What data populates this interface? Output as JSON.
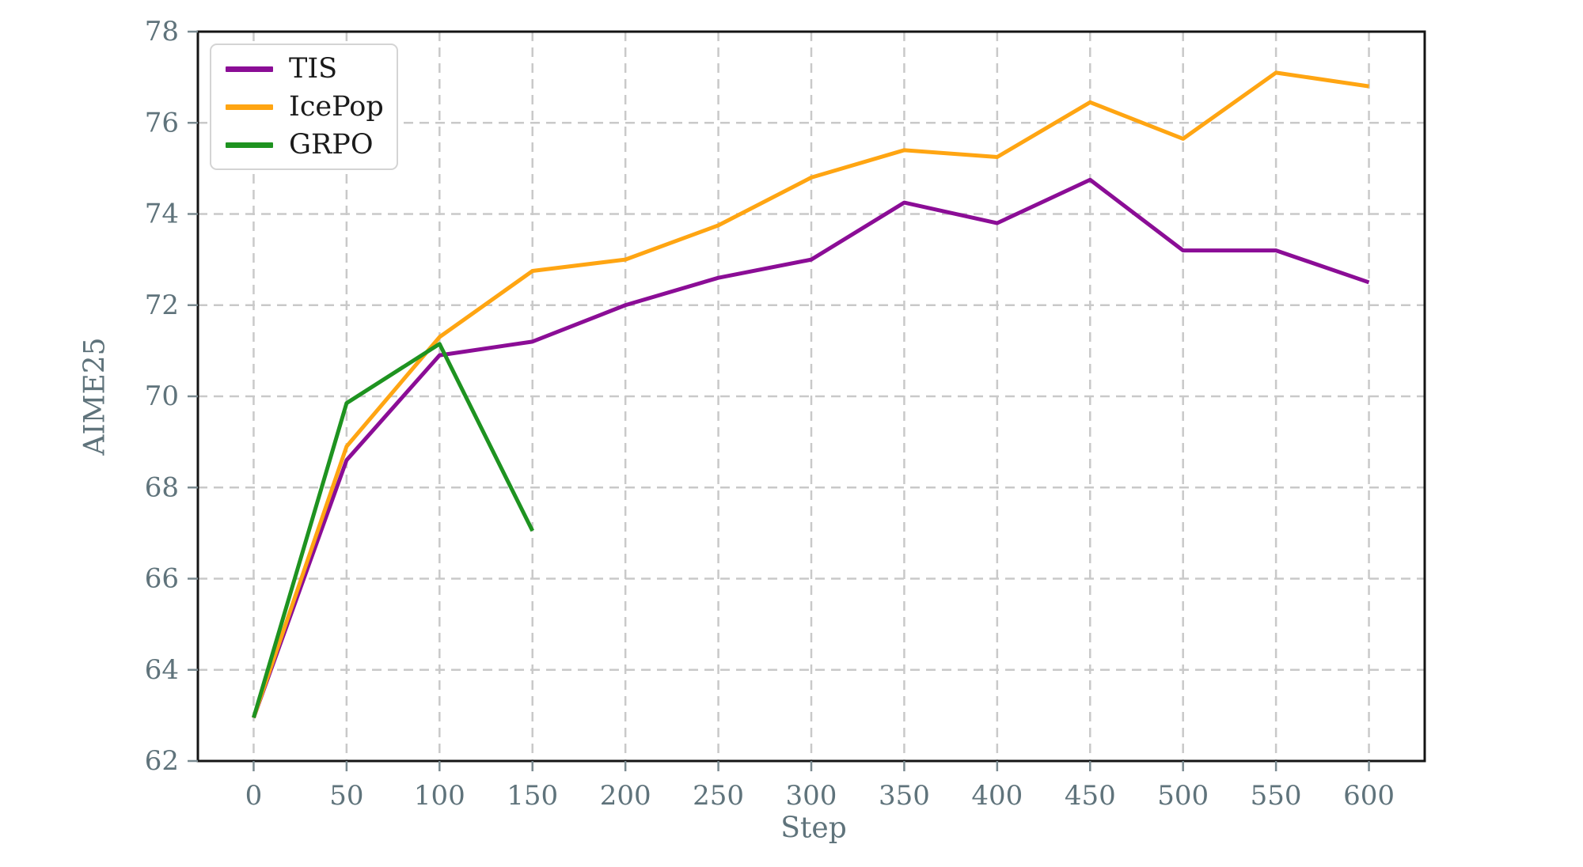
{
  "figure": {
    "background": "#ffffff",
    "spine_color": "#141414",
    "grid_color": "#c9c9c9",
    "tick_color": "#7a8a90",
    "tick_label_color": "#5f737b"
  },
  "chart_data": {
    "type": "line",
    "title": "",
    "xlabel": "Step",
    "ylabel": "AIME25",
    "xlim": [
      -30,
      630
    ],
    "ylim": [
      62,
      78
    ],
    "xticks": [
      0,
      50,
      100,
      150,
      200,
      250,
      300,
      350,
      400,
      450,
      500,
      550,
      600
    ],
    "yticks": [
      62,
      64,
      66,
      68,
      70,
      72,
      74,
      76,
      78
    ],
    "grid": true,
    "grid_style": "dashed",
    "legend_position": "upper left",
    "series": [
      {
        "name": "TIS",
        "color": "#8b0d96",
        "x": [
          0,
          50,
          100,
          150,
          200,
          250,
          300,
          350,
          400,
          450,
          500,
          550,
          600
        ],
        "values": [
          62.95,
          68.6,
          70.9,
          71.2,
          72.0,
          72.6,
          73.0,
          74.25,
          73.8,
          74.75,
          73.2,
          73.2,
          72.5
        ]
      },
      {
        "name": "IcePop",
        "color": "#ffa512",
        "x": [
          0,
          50,
          100,
          150,
          200,
          250,
          300,
          350,
          400,
          450,
          500,
          550,
          600
        ],
        "values": [
          62.95,
          68.9,
          71.3,
          72.75,
          73.0,
          73.75,
          74.8,
          75.4,
          75.25,
          76.45,
          75.65,
          77.1,
          76.8
        ]
      },
      {
        "name": "GRPO",
        "color": "#1e9320",
        "x": [
          0,
          50,
          100,
          150
        ],
        "values": [
          62.95,
          69.85,
          71.15,
          67.05
        ]
      }
    ]
  }
}
